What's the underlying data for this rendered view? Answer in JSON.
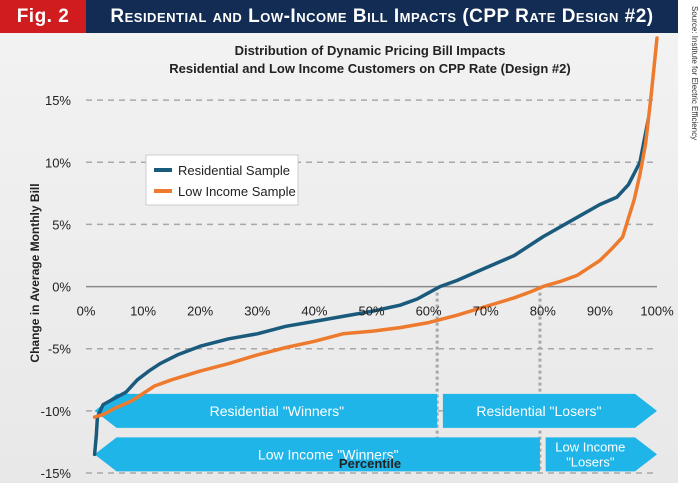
{
  "header": {
    "badge": "Fig. 2",
    "title": "Residential and Low-Income Bill Impacts (CPP Rate Design #2)",
    "source": "Source: Institute for Electric Efficiency"
  },
  "colors": {
    "badge_bg": "#d01c1f",
    "title_bg": "#122c53",
    "residential": "#1a5a7c",
    "low_income": "#ee7a2d",
    "arrow": "#1fb5e8"
  },
  "chart_data": {
    "type": "line",
    "title": "Distribution of Dynamic Pricing Bill Impacts",
    "subtitle": "Residential and Low Income Customers on CPP Rate (Design #2)",
    "xlabel": "Percentile",
    "ylabel": "Change in Average Monthly Bill",
    "xlim": [
      0,
      100
    ],
    "ylim": [
      -15,
      20
    ],
    "x_ticks": [
      "0%",
      "10%",
      "20%",
      "30%",
      "40%",
      "50%",
      "60%",
      "70%",
      "80%",
      "90%",
      "100%"
    ],
    "x_tick_values": [
      0,
      10,
      20,
      30,
      40,
      50,
      60,
      70,
      80,
      90,
      100
    ],
    "y_ticks": [
      "15%",
      "10%",
      "5%",
      "0%",
      "-5%",
      "-10%",
      "-15%"
    ],
    "y_tick_values": [
      15,
      10,
      5,
      0,
      -5,
      -10,
      -15
    ],
    "series": [
      {
        "name": "Residential Sample",
        "color": "#1a5a7c",
        "x": [
          1.5,
          1.8,
          2,
          3,
          5,
          7,
          9,
          11,
          13,
          16,
          20,
          25,
          30,
          35,
          40,
          45,
          50,
          55,
          58,
          60,
          62,
          65,
          70,
          75,
          80,
          85,
          90,
          93,
          95,
          97,
          98.5
        ],
        "y": [
          -13.5,
          -12,
          -10.5,
          -9.5,
          -9,
          -8.5,
          -7.5,
          -6.8,
          -6.2,
          -5.5,
          -4.8,
          -4.2,
          -3.8,
          -3.2,
          -2.8,
          -2.4,
          -2,
          -1.5,
          -1,
          -0.5,
          0,
          0.5,
          1.5,
          2.5,
          4,
          5.3,
          6.6,
          7.2,
          8.2,
          10,
          13.5
        ]
      },
      {
        "name": "Low Income Sample",
        "color": "#ee7a2d",
        "x": [
          1.5,
          3,
          5,
          8,
          10,
          12,
          15,
          20,
          25,
          30,
          35,
          40,
          45,
          50,
          55,
          60,
          65,
          70,
          75,
          78,
          80,
          83,
          86,
          88,
          90,
          92,
          94,
          95,
          96,
          97,
          98,
          99,
          100
        ],
        "y": [
          -10.5,
          -10.3,
          -9.8,
          -9.2,
          -8.6,
          -8,
          -7.5,
          -6.8,
          -6.2,
          -5.5,
          -4.9,
          -4.4,
          -3.8,
          -3.6,
          -3.3,
          -2.9,
          -2.3,
          -1.6,
          -0.9,
          -0.4,
          0,
          0.4,
          0.9,
          1.5,
          2.1,
          3,
          4,
          5.5,
          7,
          9,
          11.5,
          15.5,
          20
        ]
      }
    ],
    "legend": {
      "position": "upper-left",
      "entries": [
        "Residential Sample",
        "Low Income Sample"
      ]
    },
    "crossings": [
      {
        "series": "Residential Sample",
        "percentile": 61.5
      },
      {
        "series": "Low Income Sample",
        "percentile": 79.5
      }
    ],
    "annotations": [
      {
        "label": "Residential \"Winners\"",
        "from": 1.5,
        "to": 61.5,
        "y": -10,
        "direction": "left"
      },
      {
        "label": "Residential \"Losers\"",
        "from": 62.5,
        "to": 100,
        "y": -10,
        "direction": "right"
      },
      {
        "label": "Low Income \"Winners\"",
        "from": 1.5,
        "to": 79.5,
        "y": -13.5,
        "direction": "left"
      },
      {
        "label": "Low Income \"Losers\"",
        "from": 80.5,
        "to": 100,
        "y": -13.5,
        "direction": "right"
      }
    ]
  }
}
